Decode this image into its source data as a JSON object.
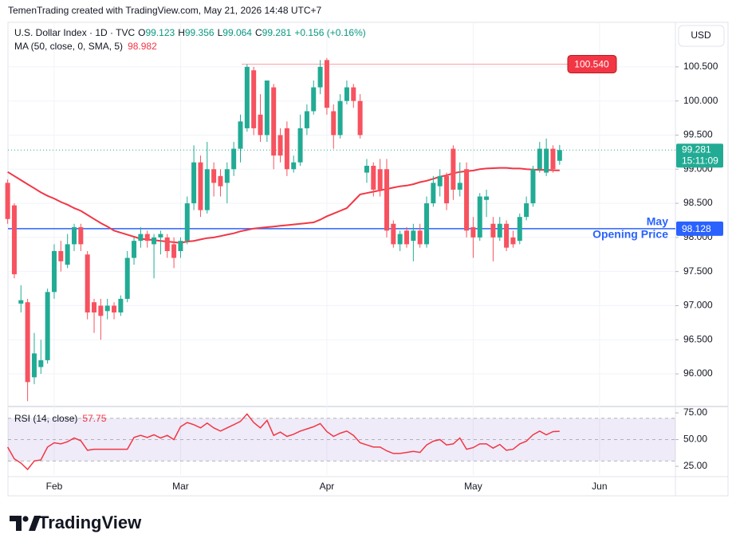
{
  "chart_data": {
    "type": "candlestick",
    "watermark": "TemenTrading created with TradingView.com, May 21, 2026 14:48 UTC+7",
    "symbol": "U.S. Dollar Index · 1D · TVC",
    "ohlc_labels": [
      "O",
      "H",
      "L",
      "C"
    ],
    "change": "+0.156 (+0.16%)",
    "currency": "USD",
    "countdown": "15:11:09",
    "brand": "TradingView",
    "up_color": "#22ab94",
    "down_color": "#f7525f",
    "grid": true,
    "categories": [
      null,
      null,
      null,
      null,
      null,
      null,
      null,
      "Feb",
      null,
      null,
      null,
      null,
      null,
      null,
      null,
      null,
      null,
      null,
      null,
      null,
      null,
      null,
      null,
      null,
      null,
      null,
      "Mar",
      null,
      null,
      null,
      null,
      null,
      null,
      null,
      null,
      null,
      null,
      null,
      null,
      null,
      null,
      null,
      null,
      null,
      null,
      null,
      null,
      null,
      "Apr",
      null,
      null,
      null,
      null,
      null,
      null,
      null,
      null,
      null,
      null,
      null,
      null,
      null,
      null,
      null,
      null,
      null,
      null,
      null,
      null,
      null,
      "May",
      null,
      null,
      null,
      null,
      null,
      null,
      null,
      null,
      null,
      null,
      null,
      null,
      null,
      null,
      null,
      null,
      null,
      null,
      "Jun"
    ],
    "open": [
      98.8,
      98.47,
      97.03,
      97.05,
      95.95,
      96.1,
      96.2,
      97.2,
      97.8,
      97.6,
      97.9,
      98.15,
      97.75,
      97.05,
      97.0,
      96.92,
      97.0,
      96.9,
      97.1,
      97.7,
      97.95,
      98.05,
      97.9,
      98.0,
      98.0,
      97.9,
      97.8,
      97.95,
      98.5,
      99.1,
      98.4,
      99.0,
      98.9,
      98.8,
      99.0,
      99.3,
      99.6,
      100.45,
      99.8,
      99.5,
      100.2,
      99.5,
      99.6,
      99.0,
      99.1,
      99.6,
      99.85,
      100.2,
      100.6,
      99.85,
      99.5,
      100.0,
      100.2,
      100.0,
      98.95,
      99.05,
      99.0,
      99.0,
      98.2,
      97.9,
      98.1,
      97.95,
      98.1,
      97.9,
      98.5,
      98.75,
      98.9,
      99.3,
      98.7,
      99.0,
      98.15,
      98.0,
      98.55,
      98.2,
      98.0,
      98.2,
      98.0,
      97.95,
      98.3,
      98.5,
      99.0,
      98.95,
      99.3,
      99.123,
      null,
      null,
      null,
      null,
      null,
      null
    ],
    "high": [
      98.85,
      98.5,
      97.3,
      97.1,
      96.6,
      96.5,
      97.25,
      97.9,
      97.95,
      98.05,
      98.2,
      98.2,
      97.8,
      97.1,
      97.1,
      97.1,
      97.05,
      97.15,
      97.8,
      98.0,
      98.15,
      98.1,
      98.05,
      98.1,
      98.05,
      98.0,
      98.0,
      98.6,
      99.35,
      99.2,
      99.4,
      99.1,
      99.0,
      99.1,
      99.4,
      99.8,
      100.54,
      100.5,
      100.1,
      100.3,
      100.25,
      99.6,
      99.7,
      99.2,
      99.8,
      99.95,
      100.3,
      100.6,
      100.63,
      99.95,
      100.1,
      100.3,
      100.25,
      100.1,
      99.15,
      99.1,
      99.15,
      99.15,
      98.25,
      98.1,
      98.15,
      98.2,
      98.2,
      98.6,
      98.9,
      99.0,
      98.95,
      99.35,
      99.1,
      99.1,
      98.3,
      98.65,
      98.7,
      98.3,
      98.3,
      98.25,
      98.1,
      98.35,
      98.6,
      99.05,
      99.4,
      99.45,
      99.35,
      99.356,
      null,
      null,
      null,
      null,
      null,
      null
    ],
    "low": [
      98.2,
      97.4,
      96.9,
      95.6,
      95.85,
      96.0,
      96.15,
      97.1,
      97.5,
      97.55,
      97.8,
      97.8,
      96.8,
      96.6,
      96.5,
      96.8,
      96.8,
      96.85,
      97.05,
      97.6,
      97.85,
      97.85,
      97.4,
      97.75,
      97.7,
      97.55,
      97.7,
      97.9,
      98.4,
      98.3,
      98.35,
      98.6,
      98.6,
      98.5,
      98.9,
      99.1,
      99.55,
      99.5,
      99.4,
      99.4,
      99.0,
      99.1,
      98.9,
      98.95,
      99.05,
      99.5,
      99.8,
      100.1,
      99.8,
      99.3,
      99.45,
      99.95,
      99.9,
      99.45,
      98.8,
      98.6,
      98.6,
      98.0,
      97.85,
      97.8,
      97.85,
      97.65,
      97.85,
      97.85,
      98.45,
      98.6,
      98.4,
      98.55,
      98.6,
      98.0,
      97.7,
      97.95,
      98.3,
      97.65,
      97.95,
      97.8,
      97.85,
      97.9,
      98.25,
      98.45,
      98.95,
      98.9,
      98.95,
      99.064,
      null,
      null,
      null,
      null,
      null,
      null
    ],
    "close": [
      98.27,
      97.46,
      97.08,
      95.88,
      96.3,
      96.2,
      97.2,
      97.8,
      97.65,
      97.9,
      98.15,
      97.9,
      96.9,
      96.9,
      96.85,
      97.0,
      96.9,
      97.1,
      97.7,
      97.95,
      98.05,
      97.95,
      98.0,
      98.05,
      97.8,
      97.7,
      97.95,
      98.5,
      99.1,
      98.4,
      99.0,
      98.8,
      98.75,
      99.0,
      99.3,
      99.7,
      100.5,
      99.6,
      99.5,
      100.3,
      99.2,
      99.2,
      99.0,
      99.1,
      99.6,
      99.85,
      100.2,
      100.5,
      99.9,
      99.5,
      100.0,
      100.2,
      100.0,
      99.5,
      99.05,
      98.7,
      98.7,
      98.1,
      97.9,
      98.05,
      97.9,
      98.1,
      97.9,
      98.5,
      98.8,
      98.9,
      98.5,
      98.7,
      98.8,
      98.1,
      98.0,
      98.6,
      98.6,
      98.0,
      98.2,
      97.85,
      97.9,
      98.3,
      98.5,
      99.0,
      99.3,
      99.3,
      99.0,
      99.281,
      null,
      null,
      null,
      null,
      null,
      null
    ],
    "ma": {
      "name": "MA (50, close, 0, SMA, 5)",
      "color": "#f23645",
      "values": [
        98.96,
        98.9,
        98.84,
        98.78,
        98.72,
        98.66,
        98.61,
        98.57,
        98.52,
        98.48,
        98.43,
        98.39,
        98.33,
        98.27,
        98.21,
        98.16,
        98.1,
        98.07,
        98.04,
        98.01,
        97.98,
        97.97,
        97.96,
        97.95,
        97.94,
        97.93,
        97.92,
        97.94,
        97.95,
        97.97,
        97.99,
        98.0,
        98.02,
        98.04,
        98.06,
        98.09,
        98.11,
        98.13,
        98.14,
        98.15,
        98.16,
        98.17,
        98.18,
        98.19,
        98.2,
        98.21,
        98.22,
        98.26,
        98.31,
        98.35,
        98.39,
        98.43,
        98.53,
        98.63,
        98.65,
        98.67,
        98.69,
        98.71,
        98.73,
        98.75,
        98.76,
        98.78,
        98.81,
        98.83,
        98.86,
        98.89,
        98.91,
        98.94,
        98.96,
        98.97,
        98.98,
        99.0,
        99.01,
        99.015,
        99.02,
        99.02,
        99.01,
        99.01,
        99.0,
        98.995,
        98.99,
        98.99,
        98.985,
        98.982,
        null,
        null,
        null,
        null,
        null,
        null
      ]
    },
    "ylim": [
      95.545,
      101.153
    ],
    "yticks": [
      {
        "value": 100.5,
        "label": "100.500"
      },
      {
        "value": 100.0,
        "label": "100.000"
      },
      {
        "value": 99.5,
        "label": "99.500"
      },
      {
        "value": 99.0,
        "label": "99.000"
      },
      {
        "value": 98.5,
        "label": "98.500"
      },
      {
        "value": 98.0,
        "label": "98.000"
      },
      {
        "value": 97.5,
        "label": "97.500"
      },
      {
        "value": 97.0,
        "label": "97.000"
      },
      {
        "value": 96.5,
        "label": "96.500"
      },
      {
        "value": 96.0,
        "label": "96.000"
      }
    ],
    "level": {
      "value": 100.54,
      "label": "100.540",
      "color": "#f23645"
    },
    "opening_price": {
      "value": 98.128,
      "label": "98.128",
      "text": [
        "May",
        "Opening Price"
      ],
      "color": "#2962ff"
    },
    "rsi": {
      "name": "RSI (14, close)",
      "color": "#f23645",
      "values": [
        43,
        32,
        28,
        22,
        30,
        31,
        43,
        47,
        46,
        48,
        51.5,
        49,
        40,
        41,
        41,
        41,
        41,
        41,
        41,
        52,
        54,
        52,
        54.5,
        51.5,
        54,
        50,
        62,
        66,
        64,
        61,
        65.5,
        61,
        58,
        61,
        64,
        67,
        74,
        66,
        61,
        68,
        54,
        57,
        53,
        55,
        58,
        60,
        62,
        65,
        57.5,
        53,
        56,
        58,
        54,
        47,
        45,
        43,
        43,
        39.5,
        37,
        37,
        38,
        39,
        38,
        45,
        48.5,
        50,
        45,
        46,
        51.5,
        41,
        42.5,
        46,
        46,
        42,
        45.5,
        40,
        41,
        46,
        48.5,
        54.5,
        58,
        54.5,
        57.5,
        57.75,
        null,
        null,
        null,
        null,
        null,
        null
      ],
      "ylim": [
        16.8,
        79.5
      ],
      "yticks": [
        {
          "value": 75,
          "label": "75.00"
        },
        {
          "value": 50,
          "label": "50.00"
        },
        {
          "value": 25,
          "label": "25.00"
        }
      ],
      "band": [
        30,
        70
      ],
      "middle": 50
    }
  }
}
